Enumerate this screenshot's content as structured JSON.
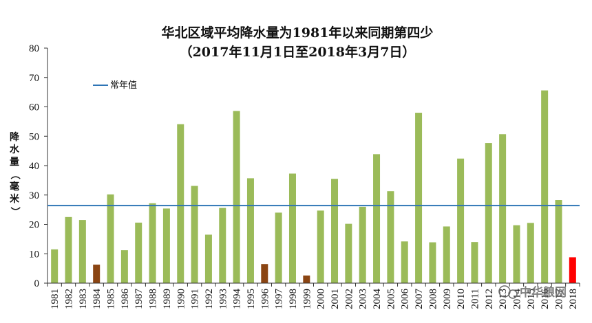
{
  "chart_data": {
    "type": "bar",
    "title": "华北区域平均降水量为1981年以来同期第四少",
    "subtitle": "（2017年11月1日至2018年3月7日）",
    "ylabel": "降水量（毫米）",
    "xlabel": "",
    "ylim": [
      0,
      80
    ],
    "yticks": [
      0,
      10,
      20,
      30,
      40,
      50,
      60,
      70,
      80
    ],
    "grid": false,
    "legend_position": "top-left",
    "categories": [
      "1981",
      "1982",
      "1983",
      "1984",
      "1985",
      "1986",
      "1987",
      "1988",
      "1989",
      "1990",
      "1991",
      "1992",
      "1993",
      "1994",
      "1995",
      "1996",
      "1997",
      "1998",
      "1999",
      "2000",
      "2001",
      "2002",
      "2003",
      "2004",
      "2005",
      "2006",
      "2007",
      "2008",
      "2009",
      "2010",
      "2011",
      "2012",
      "2013",
      "2014",
      "2015",
      "2016",
      "2017",
      "2018"
    ],
    "values": [
      11.5,
      22.5,
      21.5,
      6.3,
      30.2,
      11.2,
      20.6,
      27.2,
      25.4,
      54.1,
      33.1,
      16.5,
      25.6,
      58.6,
      35.7,
      6.5,
      24.0,
      37.3,
      2.6,
      24.7,
      35.5,
      20.2,
      26.0,
      43.9,
      31.3,
      14.2,
      58.0,
      13.9,
      19.3,
      42.4,
      14.0,
      47.7,
      50.7,
      19.7,
      20.5,
      65.6,
      28.3,
      8.8
    ],
    "bar_colors": [
      "#9bbb59",
      "#9bbb59",
      "#9bbb59",
      "#8b4513",
      "#9bbb59",
      "#9bbb59",
      "#9bbb59",
      "#9bbb59",
      "#9bbb59",
      "#9bbb59",
      "#9bbb59",
      "#9bbb59",
      "#9bbb59",
      "#9bbb59",
      "#9bbb59",
      "#8b4513",
      "#9bbb59",
      "#9bbb59",
      "#8b4513",
      "#9bbb59",
      "#9bbb59",
      "#9bbb59",
      "#9bbb59",
      "#9bbb59",
      "#9bbb59",
      "#9bbb59",
      "#9bbb59",
      "#9bbb59",
      "#9bbb59",
      "#9bbb59",
      "#9bbb59",
      "#9bbb59",
      "#9bbb59",
      "#9bbb59",
      "#9bbb59",
      "#9bbb59",
      "#9bbb59",
      "#ff0000"
    ],
    "reference_line": {
      "name": "常年值",
      "value": 26.4,
      "color": "#2e75b6"
    }
  },
  "watermark": "中华粮网",
  "colors": {
    "normal": "#9bbb59",
    "low": "#8b4513",
    "current": "#ff0000"
  }
}
